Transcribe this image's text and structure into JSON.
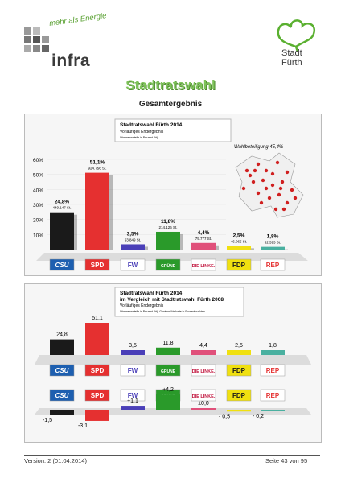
{
  "header": {
    "brand": "infra",
    "tagline": "mehr als Energie",
    "city_line1": "Stadt",
    "city_line2": "Fürth"
  },
  "page": {
    "title": "Stadtratswahl",
    "subtitle": "Gesamtergebnis"
  },
  "footer": {
    "version": "Version: 2 (01.04.2014)",
    "page_no": "Seite 43 von 95"
  },
  "colors": {
    "CSU": "#1a1a1a",
    "SPD": "#e53030",
    "FW": "#4a3fb8",
    "GRÜNE": "#2a9a2a",
    "LINKE": "#e0507a",
    "FDP": "#f0e010",
    "REP": "#4ab0a0"
  },
  "chart_data": [
    {
      "type": "bar",
      "title": "Stadtratswahl Fürth 2014",
      "subtitle": "Vorläufiges Endergebnis",
      "note": "Stimmenanteile in Prozent (%)",
      "turnout": "Wahlbeteiligung 45,4%",
      "ylim": [
        0,
        60
      ],
      "yticks": [
        "10%",
        "20%",
        "30%",
        "40%",
        "50%",
        "60%"
      ],
      "categories": [
        "CSU",
        "SPD",
        "FW",
        "GRÜNE",
        "DIE LINKE.",
        "FDP",
        "REP"
      ],
      "values": [
        24.8,
        51.1,
        3.5,
        11.8,
        4.4,
        2.5,
        1.8
      ],
      "value_labels": [
        "24,8%",
        "51,1%",
        "3,5%",
        "11,8%",
        "4,4%",
        "2,5%",
        "1,8%"
      ],
      "count_labels": [
        "449.147 St.",
        "924.756 St.",
        "63.849 St.",
        "214.126 St.",
        "79.777 St.",
        "46.065 St.",
        "32.593 St."
      ]
    },
    {
      "type": "bar",
      "title": "Stadtratswahl Fürth 2014",
      "subtitle": "im Vergleich mit Stadtratswahl Fürth 2008",
      "subtitle2": "Vorläufiges Endergebnis",
      "note": "Stimmenanteile in Prozent (%), Gewinne/Verluste in Prozentpunkten",
      "categories": [
        "CSU",
        "SPD",
        "FW",
        "GRÜNE",
        "DIE LINKE.",
        "FDP",
        "REP"
      ],
      "values": [
        24.8,
        51.1,
        3.5,
        11.8,
        4.4,
        2.5,
        1.8
      ],
      "value_labels": [
        "24,8",
        "51,1",
        "3,5",
        "11,8",
        "4,4",
        "2,5",
        "1,8"
      ],
      "changes": [
        -1.5,
        -3.1,
        1.1,
        4.2,
        0.0,
        -0.5,
        -0.2
      ],
      "change_labels": [
        "-1,5",
        "-3,1",
        "+1,1",
        "+4,2",
        "±0,0",
        "- 0,5",
        "- 0,2"
      ]
    }
  ]
}
